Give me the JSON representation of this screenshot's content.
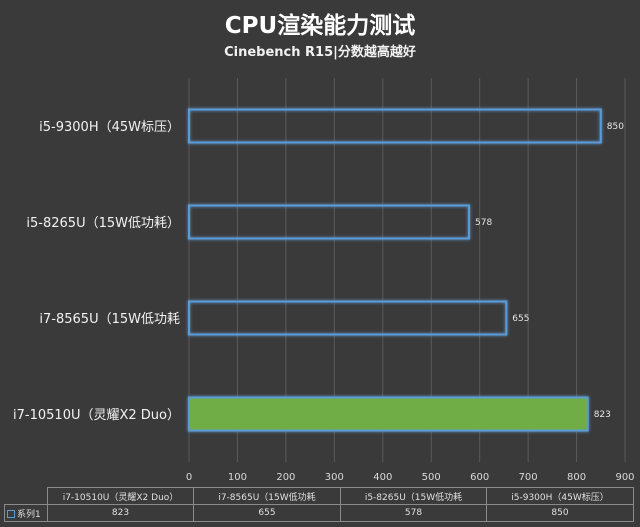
{
  "chart_data": {
    "type": "bar",
    "orientation": "horizontal",
    "title": "CPU渲染能力测试",
    "subtitle": "Cinebench R15|分数越高越好",
    "categories": [
      "i7-10510U（灵耀X2 Duo）",
      "i7-8565U（15W低功耗",
      "i5-8265U（15W低功耗）",
      "i5-9300H（45W标压）"
    ],
    "table_categories": [
      "i7-10510U（灵耀X2 Duo）",
      "i7-8565U（15W低功耗",
      "i5-8265U（15W低功耗",
      "i5-9300H（45W标压）"
    ],
    "series": [
      {
        "name": "系列1",
        "values": [
          823,
          655,
          578,
          850
        ]
      }
    ],
    "highlight_index": 0,
    "xlim": [
      0,
      900
    ],
    "x_ticks": [
      0,
      100,
      200,
      300,
      400,
      500,
      600,
      700,
      800,
      900
    ],
    "grid": true,
    "legend": "data-table",
    "colors": {
      "bar_fill": "#7ab648",
      "bar_outline": "#5b9bd5",
      "highlight_fill": "#70ad47",
      "grid": "#5a5a5a"
    }
  }
}
